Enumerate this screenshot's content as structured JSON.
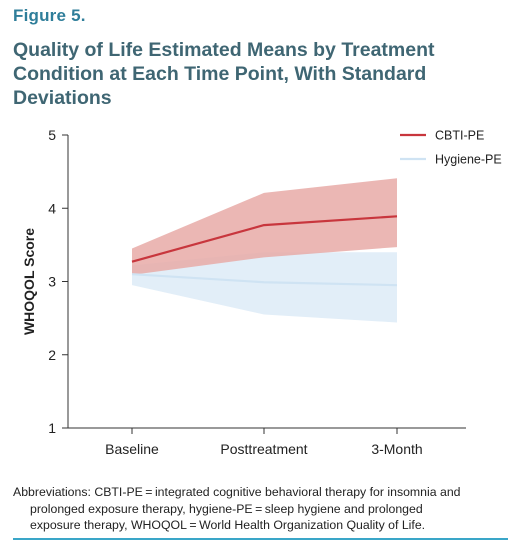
{
  "figure": {
    "label": "Figure 5.",
    "title": "Quality of Life Estimated Means by Treatment Condition at Each Time Point, With Standard Deviations"
  },
  "footnote": {
    "line1": "Abbreviations: CBTI-PE = integrated cognitive behavioral therapy for insomnia and",
    "line2": "prolonged exposure therapy, hygiene-PE = sleep hygiene and prolonged",
    "line3": "exposure therapy, WHOQOL = World Health Organization Quality of Life."
  },
  "chart_data": {
    "type": "line",
    "categories": [
      "Baseline",
      "Posttreatment",
      "3-Month"
    ],
    "ylabel": "WHOQOL Score",
    "xlabel": "",
    "ylim": [
      1,
      5
    ],
    "yticks": [
      1,
      2,
      3,
      4,
      5
    ],
    "grid": false,
    "legend_position": "top-right",
    "series": [
      {
        "name": "CBTI-PE",
        "values": [
          3.27,
          3.77,
          3.89
        ],
        "upper": [
          3.45,
          4.21,
          4.41
        ],
        "lower": [
          3.09,
          3.33,
          3.47
        ],
        "line_color": "#c8363d",
        "band_color": "#e8aaa7"
      },
      {
        "name": "Hygiene-PE",
        "values": [
          3.1,
          2.99,
          2.95
        ],
        "upper": [
          3.22,
          3.4,
          3.4
        ],
        "lower": [
          2.95,
          2.55,
          2.44
        ],
        "line_color": "#cfe3f3",
        "band_color": "#e2eef8"
      }
    ]
  }
}
